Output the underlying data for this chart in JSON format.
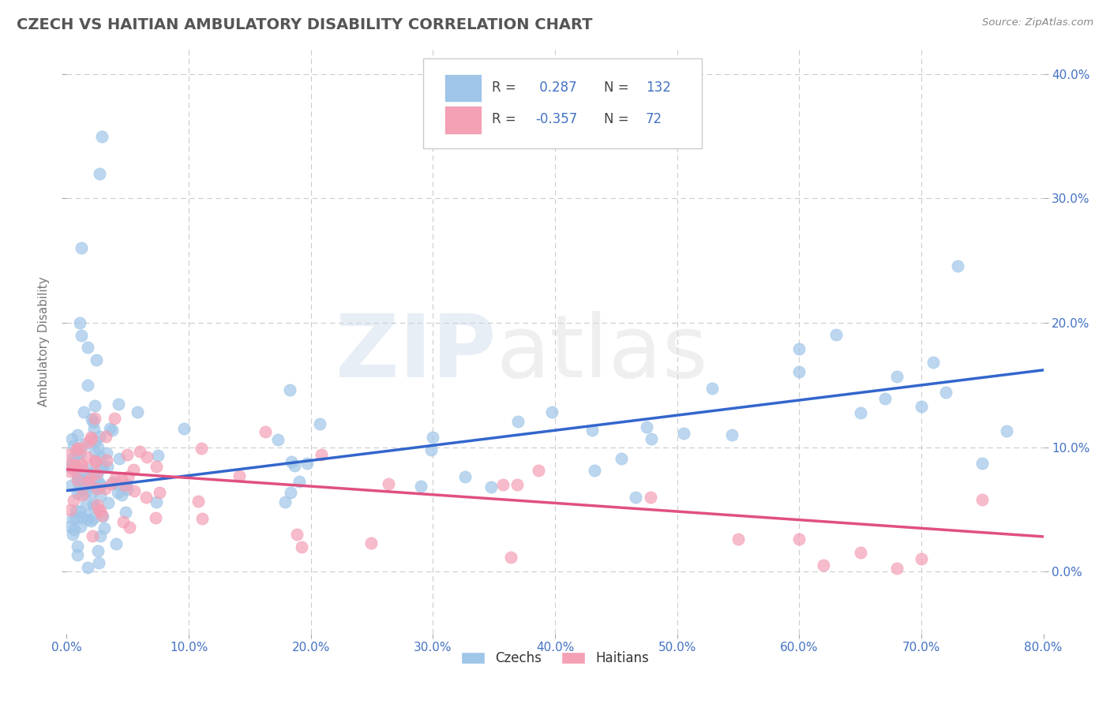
{
  "title": "CZECH VS HAITIAN AMBULATORY DISABILITY CORRELATION CHART",
  "source": "Source: ZipAtlas.com",
  "ylabel": "Ambulatory Disability",
  "xlim": [
    0.0,
    0.8
  ],
  "ylim": [
    -0.05,
    0.42
  ],
  "xtick_vals": [
    0.0,
    0.1,
    0.2,
    0.3,
    0.4,
    0.5,
    0.6,
    0.7,
    0.8
  ],
  "ytick_vals": [
    0.0,
    0.1,
    0.2,
    0.3,
    0.4
  ],
  "ytick_labels": [
    "0.0%",
    "10.0%",
    "20.0%",
    "30.0%",
    "40.0%"
  ],
  "xtick_labels": [
    "0.0%",
    "10.0%",
    "20.0%",
    "30.0%",
    "40.0%",
    "50.0%",
    "60.0%",
    "70.0%",
    "80.0%"
  ],
  "czech_color": "#9fc5e8",
  "haitian_color": "#f4a0b5",
  "czech_line_color": "#3366cc",
  "haitian_line_color": "#e05080",
  "czech_R": 0.287,
  "czech_N": 132,
  "haitian_R": -0.357,
  "haitian_N": 72,
  "background_color": "#ffffff",
  "grid_color": "#cccccc",
  "title_color": "#555555",
  "axis_label_color": "#777777",
  "tick_color": "#4472c4",
  "czech_line_start_y": 0.065,
  "czech_line_end_y": 0.162,
  "haitian_line_start_y": 0.082,
  "haitian_line_end_y": 0.028
}
